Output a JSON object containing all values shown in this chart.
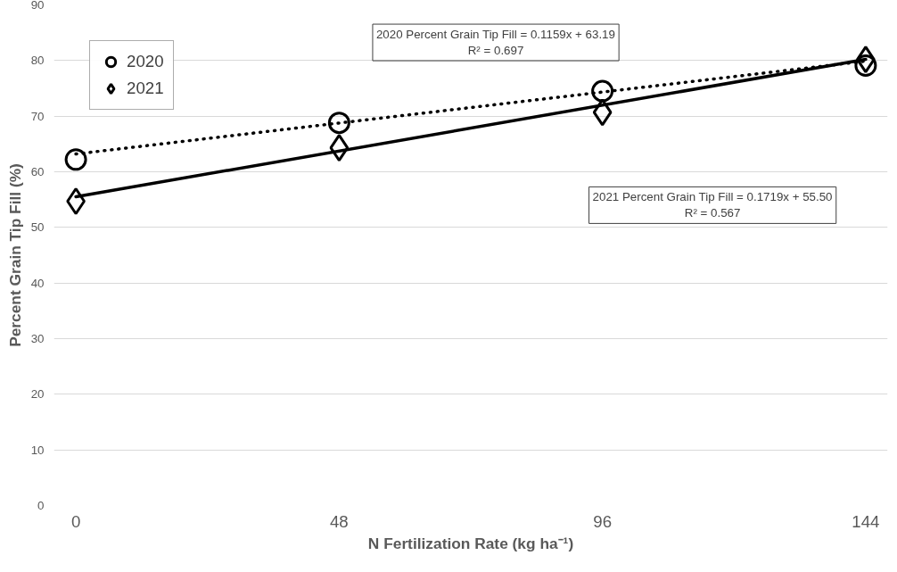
{
  "chart_data": {
    "type": "scatter",
    "xlabel": "N Fertilization Rate (kg ha⁻¹)",
    "ylabel": "Percent Grain Tip Fill (%)",
    "xlim": [
      -4,
      148
    ],
    "xticks": [
      0,
      48,
      96,
      144
    ],
    "ylim": [
      0,
      90
    ],
    "yticks": [
      0,
      10,
      20,
      30,
      40,
      50,
      60,
      70,
      80,
      90
    ],
    "grid": "y",
    "legend": "top left",
    "series": [
      {
        "name": "2020",
        "type": "scatter",
        "marker": "circle",
        "color": "#000000",
        "x": [
          0,
          48,
          96,
          144
        ],
        "values": [
          62.2,
          68.8,
          74.5,
          79.1
        ]
      },
      {
        "name": "2021",
        "type": "scatter",
        "marker": "diamond",
        "color": "#000000",
        "x": [
          0,
          48,
          96,
          144
        ],
        "values": [
          54.7,
          64.3,
          70.7,
          80.2
        ]
      },
      {
        "type": "line",
        "line_style": "dotted",
        "color": "#000000",
        "x": [
          0,
          144
        ],
        "values": [
          63.2,
          79.9
        ]
      },
      {
        "type": "line",
        "line_style": "solid",
        "color": "#000000",
        "x": [
          0,
          144
        ],
        "values": [
          55.5,
          80.2
        ]
      }
    ],
    "annotations": [
      "2020 Percent Grain Tip Fill = 0.1159x + 63.19\nR² = 0.697",
      "2021 Percent Grain Tip Fill = 0.1719x + 55.50\nR² = 0.567"
    ]
  }
}
